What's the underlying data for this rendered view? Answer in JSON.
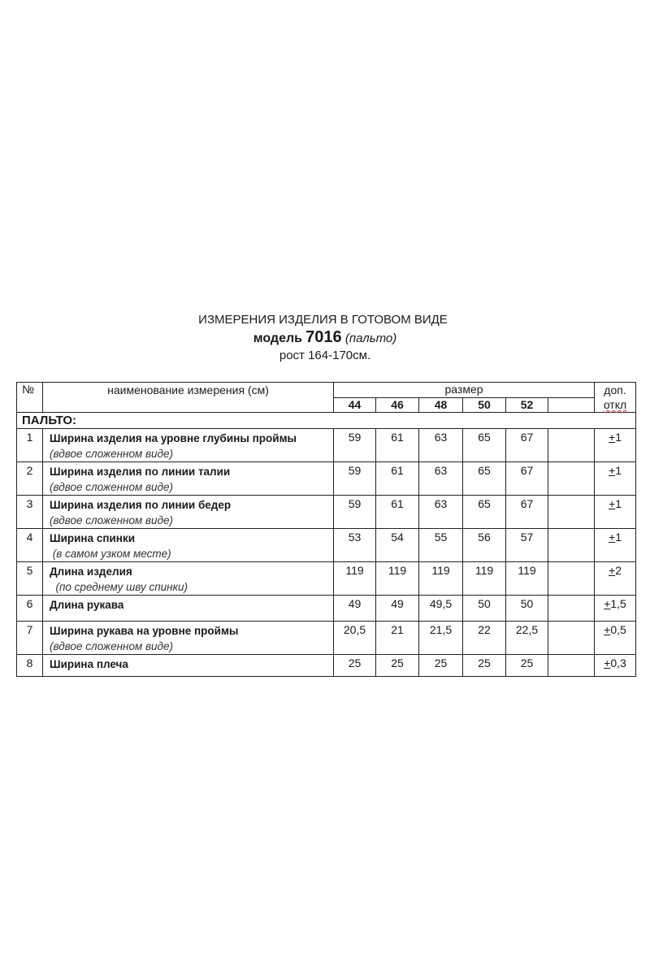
{
  "title": "ИЗМЕРЕНИЯ ИЗДЕЛИЯ В ГОТОВОМ ВИДЕ",
  "model_label": "модель",
  "model_number": "7016",
  "model_type": "(пальто)",
  "height": "рост 164-170см.",
  "table": {
    "col_no": "№",
    "col_name": "наименование измерения (см)",
    "col_size": "размер",
    "col_tol_1": "доп.",
    "col_tol_2": "откл",
    "sizes": [
      "44",
      "46",
      "48",
      "50",
      "52"
    ],
    "section": "ПАЛЬТО:",
    "rows": [
      {
        "no": "1",
        "name": "Ширина изделия на уровне глубины проймы",
        "note": "(вдвое сложенном виде)",
        "values": [
          "59",
          "61",
          "63",
          "65",
          "67"
        ],
        "tol_sign": "+",
        "tol": "1"
      },
      {
        "no": "2",
        "name": "Ширина изделия по линии талии",
        "note": "(вдвое сложенном виде)",
        "values": [
          "59",
          "61",
          "63",
          "65",
          "67"
        ],
        "tol_sign": "+",
        "tol": "1"
      },
      {
        "no": "3",
        "name": "Ширина изделия по линии бедер",
        "note": "(вдвое сложенном виде)",
        "values": [
          "59",
          "61",
          "63",
          "65",
          "67"
        ],
        "tol_sign": "+",
        "tol": "1"
      },
      {
        "no": "4",
        "name": "Ширина спинки",
        "note": " (в самом узком месте)",
        "values": [
          "53",
          "54",
          "55",
          "56",
          "57"
        ],
        "tol_sign": "+",
        "tol": "1"
      },
      {
        "no": "5",
        "name": "Длина изделия",
        "note": "  (по среднему шву спинки)",
        "values": [
          "119",
          "119",
          "119",
          "119",
          "119"
        ],
        "tol_sign": "+",
        "tol": "2"
      },
      {
        "no": "6",
        "name": "Длина рукава",
        "note": "",
        "values": [
          "49",
          "49",
          "49,5",
          "50",
          "50"
        ],
        "tol_sign": "+",
        "tol": "1,5"
      },
      {
        "no": "7",
        "name": "Ширина рукава на уровне проймы",
        "note": "(вдвое сложенном виде)",
        "values": [
          "20,5",
          "21",
          "21,5",
          "22",
          "22,5"
        ],
        "tol_sign": "+",
        "tol": "0,5"
      },
      {
        "no": "8",
        "name": "Ширина плеча",
        "note": "",
        "values": [
          "25",
          "25",
          "25",
          "25",
          "25"
        ],
        "tol_sign": "+",
        "tol": "0,3"
      }
    ]
  }
}
